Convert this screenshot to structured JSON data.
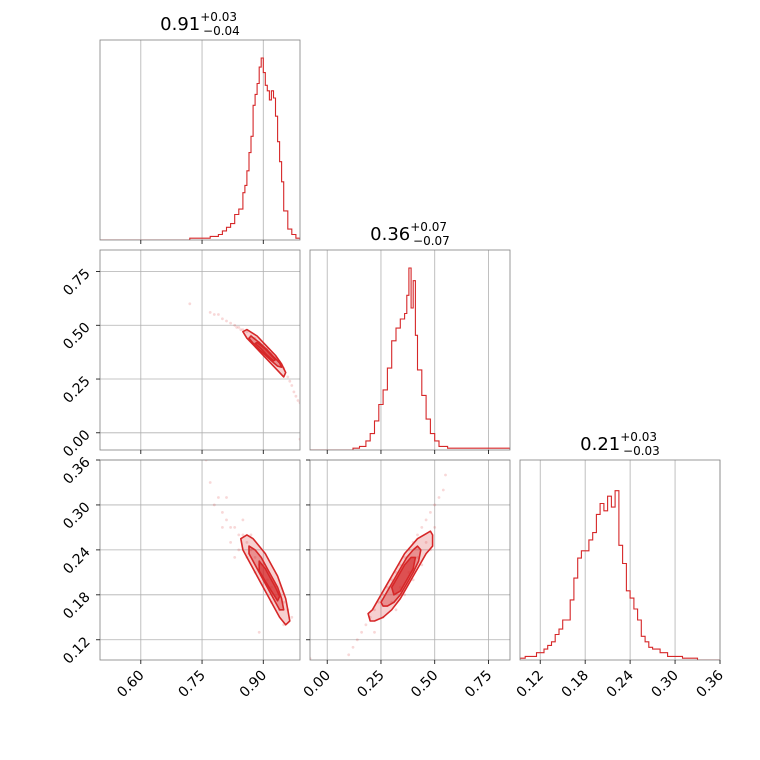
{
  "chart_data": {
    "type": "scatter",
    "subtype": "corner",
    "color": "#d62728",
    "grid": true,
    "parameters": [
      {
        "range": [
          0.5,
          0.99
        ],
        "ticks": [
          0.6,
          0.75,
          0.9
        ],
        "tick_labels": [
          "0.60",
          "0.75",
          "0.90"
        ]
      },
      {
        "range": [
          -0.08,
          0.85
        ],
        "ticks": [
          0.0,
          0.25,
          0.5,
          0.75
        ],
        "tick_labels": [
          "0.00",
          "0.25",
          "0.50",
          "0.75"
        ]
      },
      {
        "range": [
          0.093,
          0.36
        ],
        "ticks": [
          0.12,
          0.18,
          0.24,
          0.3,
          0.36
        ],
        "tick_labels": [
          "0.12",
          "0.18",
          "0.24",
          "0.30",
          "0.36"
        ]
      }
    ],
    "diag_titles": [
      {
        "value": "0.91",
        "plus": "+0.03",
        "minus": "−0.04"
      },
      {
        "value": "0.36",
        "plus": "+0.07",
        "minus": "−0.07"
      },
      {
        "value": "0.21",
        "plus": "+0.03",
        "minus": "−0.03"
      }
    ],
    "histograms": [
      {
        "x": [
          0.5,
          0.72,
          0.77,
          0.79,
          0.8,
          0.81,
          0.82,
          0.83,
          0.84,
          0.85,
          0.855,
          0.86,
          0.865,
          0.87,
          0.875,
          0.88,
          0.885,
          0.89,
          0.895,
          0.9,
          0.905,
          0.91,
          0.915,
          0.92,
          0.925,
          0.93,
          0.935,
          0.94,
          0.945,
          0.95,
          0.96,
          0.97,
          0.98,
          0.99
        ],
        "y": [
          0.0,
          0.01,
          0.02,
          0.03,
          0.05,
          0.07,
          0.09,
          0.14,
          0.17,
          0.26,
          0.3,
          0.38,
          0.48,
          0.57,
          0.74,
          0.8,
          0.86,
          0.95,
          1.0,
          0.92,
          0.85,
          0.82,
          0.77,
          0.82,
          0.78,
          0.68,
          0.54,
          0.43,
          0.32,
          0.16,
          0.06,
          0.03,
          0.01,
          0.0
        ]
      },
      {
        "x": [
          -0.08,
          0.12,
          0.15,
          0.18,
          0.2,
          0.22,
          0.24,
          0.26,
          0.28,
          0.3,
          0.32,
          0.34,
          0.36,
          0.37,
          0.38,
          0.39,
          0.4,
          0.41,
          0.42,
          0.44,
          0.46,
          0.48,
          0.5,
          0.52,
          0.56,
          0.85
        ],
        "y": [
          0.0,
          0.01,
          0.02,
          0.05,
          0.09,
          0.16,
          0.25,
          0.33,
          0.45,
          0.6,
          0.67,
          0.72,
          0.75,
          0.85,
          1.0,
          0.78,
          0.93,
          0.63,
          0.44,
          0.3,
          0.17,
          0.09,
          0.05,
          0.02,
          0.01,
          0.0
        ]
      },
      {
        "x": [
          0.093,
          0.1,
          0.11,
          0.115,
          0.12,
          0.125,
          0.13,
          0.135,
          0.14,
          0.145,
          0.15,
          0.155,
          0.16,
          0.165,
          0.17,
          0.175,
          0.18,
          0.185,
          0.19,
          0.195,
          0.2,
          0.205,
          0.21,
          0.215,
          0.22,
          0.225,
          0.23,
          0.235,
          0.24,
          0.245,
          0.25,
          0.255,
          0.26,
          0.265,
          0.27,
          0.28,
          0.29,
          0.3,
          0.31,
          0.32,
          0.33,
          0.36
        ],
        "y": [
          0.01,
          0.02,
          0.02,
          0.04,
          0.04,
          0.06,
          0.08,
          0.1,
          0.14,
          0.17,
          0.22,
          0.22,
          0.33,
          0.45,
          0.56,
          0.6,
          0.6,
          0.66,
          0.7,
          0.8,
          0.86,
          0.82,
          0.9,
          0.84,
          0.93,
          0.63,
          0.53,
          0.38,
          0.34,
          0.28,
          0.22,
          0.13,
          0.1,
          0.07,
          0.06,
          0.04,
          0.02,
          0.02,
          0.01,
          0.01,
          0.0,
          0.0
        ]
      }
    ],
    "joint": [
      {
        "pair": [
          0,
          1
        ],
        "contour_levels": [
          [
            [
              0.86,
              0.48
            ],
            [
              0.885,
              0.45
            ],
            [
              0.91,
              0.4
            ],
            [
              0.93,
              0.36
            ],
            [
              0.945,
              0.32
            ],
            [
              0.955,
              0.28
            ],
            [
              0.95,
              0.26
            ],
            [
              0.935,
              0.29
            ],
            [
              0.915,
              0.33
            ],
            [
              0.895,
              0.37
            ],
            [
              0.875,
              0.41
            ],
            [
              0.86,
              0.44
            ],
            [
              0.85,
              0.47
            ]
          ],
          [
            [
              0.87,
              0.45
            ],
            [
              0.89,
              0.42
            ],
            [
              0.91,
              0.385
            ],
            [
              0.925,
              0.355
            ],
            [
              0.94,
              0.325
            ],
            [
              0.945,
              0.305
            ],
            [
              0.935,
              0.31
            ],
            [
              0.92,
              0.335
            ],
            [
              0.9,
              0.37
            ],
            [
              0.88,
              0.405
            ],
            [
              0.865,
              0.44
            ]
          ],
          [
            [
              0.885,
              0.42
            ],
            [
              0.905,
              0.39
            ],
            [
              0.92,
              0.36
            ],
            [
              0.93,
              0.34
            ],
            [
              0.925,
              0.335
            ],
            [
              0.91,
              0.36
            ],
            [
              0.895,
              0.39
            ],
            [
              0.88,
              0.415
            ]
          ]
        ],
        "points": [
          [
            0.77,
            0.56
          ],
          [
            0.78,
            0.55
          ],
          [
            0.79,
            0.55
          ],
          [
            0.8,
            0.53
          ],
          [
            0.81,
            0.52
          ],
          [
            0.82,
            0.51
          ],
          [
            0.83,
            0.5
          ],
          [
            0.835,
            0.49
          ],
          [
            0.84,
            0.49
          ],
          [
            0.845,
            0.48
          ],
          [
            0.85,
            0.48
          ],
          [
            0.86,
            0.47
          ],
          [
            0.87,
            0.45
          ],
          [
            0.88,
            0.44
          ],
          [
            0.89,
            0.42
          ],
          [
            0.9,
            0.4
          ],
          [
            0.91,
            0.39
          ],
          [
            0.92,
            0.37
          ],
          [
            0.93,
            0.35
          ],
          [
            0.94,
            0.33
          ],
          [
            0.95,
            0.3
          ],
          [
            0.96,
            0.26
          ],
          [
            0.965,
            0.24
          ],
          [
            0.97,
            0.22
          ],
          [
            0.975,
            0.19
          ],
          [
            0.98,
            0.17
          ],
          [
            0.985,
            0.15
          ],
          [
            0.72,
            0.6
          ],
          [
            0.99,
            0.14
          ],
          [
            0.99,
            -0.03
          ]
        ]
      },
      {
        "pair": [
          0,
          2
        ],
        "contour_levels": [
          [
            [
              0.845,
              0.255
            ],
            [
              0.86,
              0.26
            ],
            [
              0.875,
              0.255
            ],
            [
              0.89,
              0.245
            ],
            [
              0.905,
              0.235
            ],
            [
              0.92,
              0.22
            ],
            [
              0.935,
              0.205
            ],
            [
              0.945,
              0.19
            ],
            [
              0.955,
              0.175
            ],
            [
              0.96,
              0.16
            ],
            [
              0.965,
              0.145
            ],
            [
              0.955,
              0.14
            ],
            [
              0.94,
              0.15
            ],
            [
              0.925,
              0.165
            ],
            [
              0.91,
              0.18
            ],
            [
              0.895,
              0.195
            ],
            [
              0.88,
              0.21
            ],
            [
              0.865,
              0.225
            ],
            [
              0.85,
              0.24
            ]
          ],
          [
            [
              0.865,
              0.245
            ],
            [
              0.88,
              0.24
            ],
            [
              0.895,
              0.23
            ],
            [
              0.91,
              0.215
            ],
            [
              0.925,
              0.2
            ],
            [
              0.935,
              0.19
            ],
            [
              0.945,
              0.175
            ],
            [
              0.95,
              0.16
            ],
            [
              0.94,
              0.16
            ],
            [
              0.925,
              0.175
            ],
            [
              0.91,
              0.19
            ],
            [
              0.895,
              0.205
            ],
            [
              0.88,
              0.22
            ],
            [
              0.865,
              0.235
            ]
          ],
          [
            [
              0.89,
              0.225
            ],
            [
              0.905,
              0.215
            ],
            [
              0.92,
              0.2
            ],
            [
              0.93,
              0.19
            ],
            [
              0.94,
              0.178
            ],
            [
              0.935,
              0.172
            ],
            [
              0.92,
              0.185
            ],
            [
              0.905,
              0.198
            ],
            [
              0.89,
              0.212
            ]
          ]
        ],
        "points": [
          [
            0.77,
            0.33
          ],
          [
            0.78,
            0.3
          ],
          [
            0.8,
            0.29
          ],
          [
            0.81,
            0.28
          ],
          [
            0.82,
            0.27
          ],
          [
            0.83,
            0.27
          ],
          [
            0.84,
            0.26
          ],
          [
            0.85,
            0.26
          ],
          [
            0.86,
            0.25
          ],
          [
            0.87,
            0.24
          ],
          [
            0.88,
            0.23
          ],
          [
            0.89,
            0.22
          ],
          [
            0.9,
            0.22
          ],
          [
            0.91,
            0.2
          ],
          [
            0.92,
            0.19
          ],
          [
            0.93,
            0.19
          ],
          [
            0.94,
            0.18
          ],
          [
            0.95,
            0.17
          ],
          [
            0.96,
            0.16
          ],
          [
            0.97,
            0.15
          ],
          [
            0.8,
            0.27
          ],
          [
            0.82,
            0.25
          ],
          [
            0.84,
            0.24
          ],
          [
            0.86,
            0.23
          ],
          [
            0.88,
            0.21
          ],
          [
            0.9,
            0.2
          ],
          [
            0.92,
            0.17
          ],
          [
            0.94,
            0.16
          ],
          [
            0.95,
            0.14
          ],
          [
            0.89,
            0.13
          ],
          [
            0.83,
            0.23
          ],
          [
            0.79,
            0.31
          ],
          [
            0.81,
            0.31
          ],
          [
            0.85,
            0.28
          ],
          [
            0.87,
            0.26
          ],
          [
            0.76,
            0.36
          ]
        ]
      },
      {
        "pair": [
          1,
          2
        ],
        "contour_levels": [
          [
            [
              0.19,
              0.155
            ],
            [
              0.21,
              0.16
            ],
            [
              0.24,
              0.175
            ],
            [
              0.27,
              0.19
            ],
            [
              0.3,
              0.205
            ],
            [
              0.33,
              0.22
            ],
            [
              0.36,
              0.235
            ],
            [
              0.39,
              0.245
            ],
            [
              0.42,
              0.255
            ],
            [
              0.45,
              0.26
            ],
            [
              0.48,
              0.265
            ],
            [
              0.49,
              0.26
            ],
            [
              0.49,
              0.245
            ],
            [
              0.46,
              0.235
            ],
            [
              0.43,
              0.22
            ],
            [
              0.4,
              0.205
            ],
            [
              0.37,
              0.19
            ],
            [
              0.34,
              0.175
            ],
            [
              0.3,
              0.16
            ],
            [
              0.26,
              0.15
            ],
            [
              0.22,
              0.145
            ],
            [
              0.2,
              0.145
            ]
          ],
          [
            [
              0.25,
              0.17
            ],
            [
              0.28,
              0.185
            ],
            [
              0.31,
              0.2
            ],
            [
              0.34,
              0.215
            ],
            [
              0.37,
              0.23
            ],
            [
              0.4,
              0.24
            ],
            [
              0.42,
              0.245
            ],
            [
              0.435,
              0.24
            ],
            [
              0.425,
              0.225
            ],
            [
              0.4,
              0.21
            ],
            [
              0.37,
              0.195
            ],
            [
              0.34,
              0.18
            ],
            [
              0.31,
              0.17
            ],
            [
              0.28,
              0.165
            ],
            [
              0.26,
              0.165
            ]
          ],
          [
            [
              0.3,
              0.19
            ],
            [
              0.33,
              0.205
            ],
            [
              0.36,
              0.22
            ],
            [
              0.39,
              0.23
            ],
            [
              0.41,
              0.23
            ],
            [
              0.4,
              0.215
            ],
            [
              0.37,
              0.2
            ],
            [
              0.34,
              0.185
            ],
            [
              0.31,
              0.18
            ]
          ]
        ],
        "points": [
          [
            0.12,
            0.11
          ],
          [
            0.14,
            0.12
          ],
          [
            0.16,
            0.13
          ],
          [
            0.18,
            0.14
          ],
          [
            0.2,
            0.15
          ],
          [
            0.22,
            0.16
          ],
          [
            0.24,
            0.17
          ],
          [
            0.26,
            0.18
          ],
          [
            0.28,
            0.19
          ],
          [
            0.3,
            0.2
          ],
          [
            0.32,
            0.21
          ],
          [
            0.34,
            0.22
          ],
          [
            0.36,
            0.23
          ],
          [
            0.38,
            0.24
          ],
          [
            0.4,
            0.25
          ],
          [
            0.42,
            0.26
          ],
          [
            0.44,
            0.27
          ],
          [
            0.46,
            0.28
          ],
          [
            0.48,
            0.29
          ],
          [
            0.5,
            0.3
          ],
          [
            0.52,
            0.31
          ],
          [
            0.54,
            0.32
          ],
          [
            0.5,
            0.27
          ],
          [
            0.46,
            0.25
          ],
          [
            0.42,
            0.23
          ],
          [
            0.38,
            0.21
          ],
          [
            0.34,
            0.19
          ],
          [
            0.3,
            0.17
          ],
          [
            0.26,
            0.15
          ],
          [
            0.22,
            0.13
          ],
          [
            0.48,
            0.24
          ],
          [
            0.44,
            0.22
          ],
          [
            0.4,
            0.2
          ],
          [
            0.36,
            0.18
          ],
          [
            0.32,
            0.16
          ],
          [
            -0.08,
            0.095
          ],
          [
            0.55,
            0.34
          ],
          [
            0.1,
            0.1
          ]
        ]
      }
    ]
  }
}
